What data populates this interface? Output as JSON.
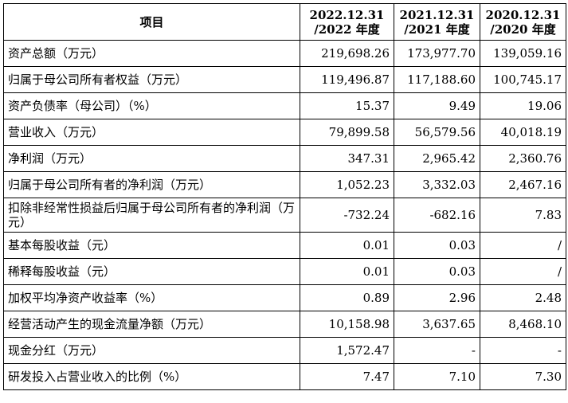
{
  "header": {
    "item": "项目",
    "periods": [
      {
        "line1": "2022.12.31",
        "line2": "/2022 年度"
      },
      {
        "line1": "2021.12.31",
        "line2": "/2021 年度"
      },
      {
        "line1": "2020.12.31",
        "line2": "/2020 年度"
      }
    ]
  },
  "rows": [
    {
      "label": "资产总额（万元）",
      "values": [
        "219,698.26",
        "173,977.70",
        "139,059.16"
      ]
    },
    {
      "label": "归属于母公司所有者权益（万元）",
      "values": [
        "119,496.87",
        "117,188.60",
        "100,745.17"
      ]
    },
    {
      "label": "资产负债率（母公司）（%）",
      "values": [
        "15.37",
        "9.49",
        "19.06"
      ]
    },
    {
      "label": "营业收入（万元）",
      "values": [
        "79,899.58",
        "56,579.56",
        "40,018.19"
      ]
    },
    {
      "label": "净利润（万元）",
      "values": [
        "347.31",
        "2,965.42",
        "2,360.76"
      ]
    },
    {
      "label": "归属于母公司所有者的净利润（万元）",
      "values": [
        "1,052.23",
        "3,332.03",
        "2,467.16"
      ]
    },
    {
      "label": "扣除非经常性损益后归属于母公司所有者的净利润（万元）",
      "values": [
        "-732.24",
        "-682.16",
        "7.83"
      ]
    },
    {
      "label": "基本每股收益（元）",
      "values": [
        "0.01",
        "0.03",
        "/"
      ]
    },
    {
      "label": "稀释每股收益（元）",
      "values": [
        "0.01",
        "0.03",
        "/"
      ]
    },
    {
      "label": "加权平均净资产收益率（%）",
      "values": [
        "0.89",
        "2.96",
        "2.48"
      ]
    },
    {
      "label": "经营活动产生的现金流量净额（万元）",
      "values": [
        "10,158.98",
        "3,637.65",
        "8,468.10"
      ]
    },
    {
      "label": "现金分红（万元）",
      "values": [
        "1,572.47",
        "-",
        "-"
      ]
    },
    {
      "label": "研发投入占营业收入的比例（%）",
      "values": [
        "7.47",
        "7.10",
        "7.30"
      ]
    }
  ]
}
